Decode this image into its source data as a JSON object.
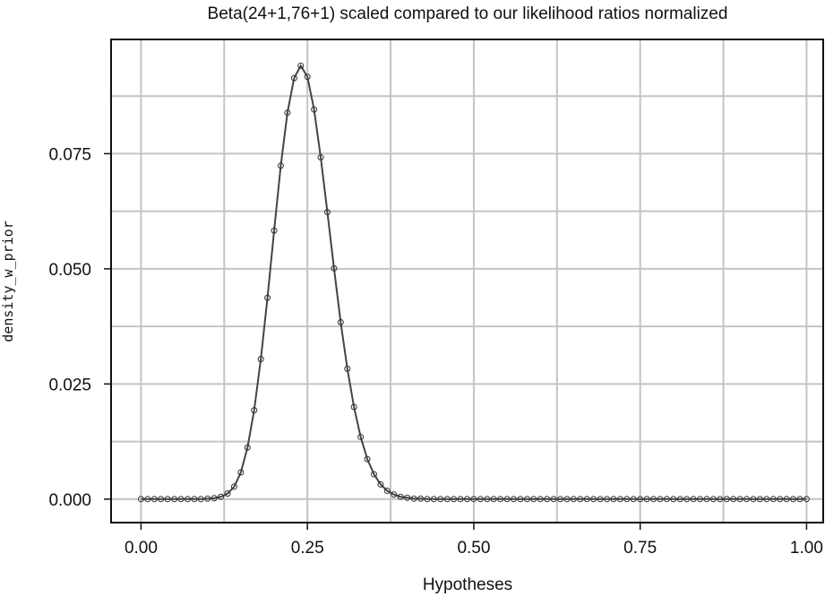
{
  "chart_data": {
    "type": "line",
    "title": "Beta(24+1,76+1) scaled compared to our likelihood ratios normalized",
    "xlabel": "Hypotheses",
    "ylabel": "density_w_prior",
    "xlim": [
      -0.045,
      1.025
    ],
    "ylim": [
      -0.0051,
      0.0998
    ],
    "x_major_ticks": [
      0.0,
      0.25,
      0.5,
      0.75,
      1.0
    ],
    "x_tick_labels": [
      "0.00",
      "0.25",
      "0.50",
      "0.75",
      "1.00"
    ],
    "x_minor_grid": [
      0.125,
      0.375,
      0.625,
      0.875
    ],
    "y_major_ticks": [
      0.0,
      0.025,
      0.05,
      0.075
    ],
    "y_tick_labels": [
      "0.000",
      "0.025",
      "0.050",
      "0.075"
    ],
    "y_minor_grid": [
      0.0125,
      0.0375,
      0.0625,
      0.0875
    ],
    "grid": true,
    "series": [
      {
        "type": "line",
        "style": "line-with-points",
        "color": "#444444",
        "x": [
          0.0,
          0.01,
          0.02,
          0.03,
          0.04,
          0.05,
          0.06,
          0.07,
          0.08,
          0.09,
          0.1,
          0.11,
          0.12,
          0.13,
          0.14,
          0.15,
          0.16,
          0.17,
          0.18,
          0.19,
          0.2,
          0.21,
          0.22,
          0.23,
          0.24,
          0.25,
          0.26,
          0.27,
          0.28,
          0.29,
          0.3,
          0.31,
          0.32,
          0.33,
          0.34,
          0.35,
          0.36,
          0.37,
          0.38,
          0.39,
          0.4,
          0.41,
          0.42,
          0.43,
          0.44,
          0.45,
          0.46,
          0.47,
          0.48,
          0.49,
          0.5,
          0.51,
          0.52,
          0.53,
          0.54,
          0.55,
          0.56,
          0.57,
          0.58,
          0.59,
          0.6,
          0.61,
          0.62,
          0.63,
          0.64,
          0.65,
          0.66,
          0.67,
          0.68,
          0.69,
          0.7,
          0.71,
          0.72,
          0.73,
          0.74,
          0.75,
          0.76,
          0.77,
          0.78,
          0.79,
          0.8,
          0.81,
          0.82,
          0.83,
          0.84,
          0.85,
          0.86,
          0.87,
          0.88,
          0.89,
          0.9,
          0.91,
          0.92,
          0.93,
          0.94,
          0.95,
          0.96,
          0.97,
          0.98,
          0.99,
          1.0
        ],
        "y": [
          0,
          0,
          0,
          0,
          0,
          0,
          0,
          0,
          0,
          0,
          0.0001,
          0.0002,
          0.0005,
          0.0012,
          0.0027,
          0.0058,
          0.0112,
          0.0193,
          0.0304,
          0.0437,
          0.0583,
          0.0724,
          0.0839,
          0.0914,
          0.0941,
          0.0917,
          0.0846,
          0.0742,
          0.0623,
          0.0501,
          0.0384,
          0.0283,
          0.02,
          0.0135,
          0.0087,
          0.0054,
          0.0032,
          0.0018,
          0.001,
          0.0005,
          0.0003,
          0.0001,
          0.0001,
          0,
          0,
          0,
          0,
          0,
          0,
          0,
          0,
          0,
          0,
          0,
          0,
          0,
          0,
          0,
          0,
          0,
          0,
          0,
          0,
          0,
          0,
          0,
          0,
          0,
          0,
          0,
          0,
          0,
          0,
          0,
          0,
          0,
          0,
          0,
          0,
          0,
          0,
          0,
          0,
          0,
          0,
          0,
          0,
          0,
          0,
          0,
          0,
          0,
          0,
          0,
          0,
          0,
          0,
          0,
          0,
          0,
          0
        ]
      }
    ]
  }
}
